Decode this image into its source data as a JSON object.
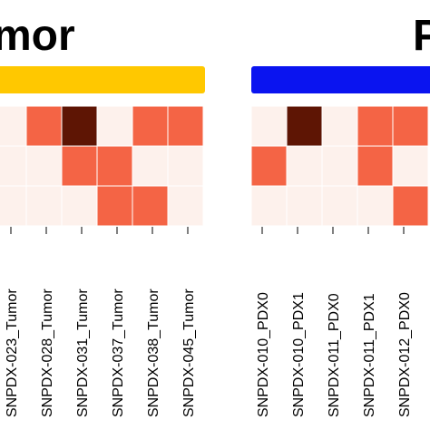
{
  "chart_data": [
    {
      "type": "heatmap",
      "title": "mor",
      "group_bar_color": "#FFC800",
      "columns": [
        "SNPDX-023_Tumor",
        "SNPDX-028_Tumor",
        "SNPDX-031_Tumor",
        "SNPDX-037_Tumor",
        "SNPDX-038_Tumor",
        "SNPDX-045_Tumor"
      ],
      "rows": 3,
      "values": [
        [
          0,
          1,
          2,
          0,
          1,
          1
        ],
        [
          0,
          0,
          1,
          1,
          0,
          0
        ],
        [
          0,
          0,
          0,
          1,
          1,
          0
        ]
      ]
    },
    {
      "type": "heatmap",
      "title": "P",
      "group_bar_color": "#0A14F0",
      "columns": [
        "SNPDX-010_PDX0",
        "SNPDX-010_PDX1",
        "SNPDX-011_PDX0",
        "SNPDX-011_PDX1",
        "SNPDX-012_PDX0"
      ],
      "rows": 3,
      "values": [
        [
          0,
          2,
          0,
          1,
          1
        ],
        [
          1,
          0,
          0,
          1,
          0
        ],
        [
          0,
          0,
          0,
          0,
          1
        ]
      ]
    }
  ],
  "colors": {
    "level_0": "#FDF1EC",
    "level_1": "#F46445",
    "level_2": "#5E1504",
    "divider": "#FFFFFF"
  }
}
